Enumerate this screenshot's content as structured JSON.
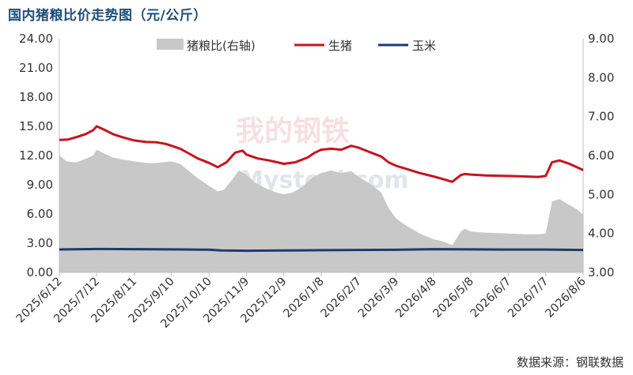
{
  "title": "国内猪粮比价走势图（元/公斤）",
  "source": "数据来源：钢联数据",
  "watermark": "我的钢铁 Mysteel.com",
  "colors": {
    "ratio_fill": "#c8c8c8",
    "pig_line": "#c8141e",
    "corn_line": "#1f3a6e"
  },
  "chart_data": {
    "type": "line",
    "title": "国内猪粮比价走势图（元/公斤）",
    "left_axis": {
      "min": 0,
      "max": 24,
      "step": 3,
      "ticks": [
        "0.00",
        "3.00",
        "6.00",
        "9.00",
        "12.00",
        "15.00",
        "18.00",
        "21.00",
        "24.00"
      ]
    },
    "right_axis": {
      "min": 3,
      "max": 9,
      "step": 1,
      "ticks": [
        "3.00",
        "4.00",
        "5.00",
        "6.00",
        "7.00",
        "8.00",
        "9.00"
      ]
    },
    "x_ticks": [
      "2025/6/12",
      "2025/7/12",
      "2025/8/11",
      "2025/9/10",
      "2025/10/10",
      "2025/11/9",
      "2025/12/9",
      "2026/1/8",
      "2026/2/7",
      "2026/3/9",
      "2026/4/8",
      "2026/5/8",
      "2026/6/7",
      "2026/7/7",
      "2026/8/6"
    ],
    "legend": {
      "placement": "top",
      "items": [
        "猪粮比(右轴)",
        "生猪",
        "玉米"
      ]
    },
    "x_range": [
      "2025/6/12",
      "2026/8/6"
    ],
    "series": [
      {
        "name": "猪粮比(右轴)",
        "type": "area",
        "axis": "right",
        "points": [
          [
            "2025/6/12",
            6.0
          ],
          [
            "2025/6/18",
            5.85
          ],
          [
            "2025/6/25",
            5.82
          ],
          [
            "2025/7/2",
            5.9
          ],
          [
            "2025/7/9",
            6.0
          ],
          [
            "2025/7/12",
            6.15
          ],
          [
            "2025/7/18",
            6.05
          ],
          [
            "2025/7/25",
            5.95
          ],
          [
            "2025/8/1",
            5.9
          ],
          [
            "2025/8/11",
            5.85
          ],
          [
            "2025/8/18",
            5.82
          ],
          [
            "2025/8/25",
            5.8
          ],
          [
            "2025/9/1",
            5.82
          ],
          [
            "2025/9/10",
            5.85
          ],
          [
            "2025/9/17",
            5.78
          ],
          [
            "2025/9/24",
            5.6
          ],
          [
            "2025/10/1",
            5.42
          ],
          [
            "2025/10/10",
            5.22
          ],
          [
            "2025/10/17",
            5.08
          ],
          [
            "2025/10/22",
            5.12
          ],
          [
            "2025/10/29",
            5.4
          ],
          [
            "2025/11/3",
            5.62
          ],
          [
            "2025/11/9",
            5.5
          ],
          [
            "2025/11/16",
            5.3
          ],
          [
            "2025/11/25",
            5.15
          ],
          [
            "2025/12/3",
            5.05
          ],
          [
            "2025/12/9",
            5.0
          ],
          [
            "2025/12/16",
            5.05
          ],
          [
            "2025/12/24",
            5.2
          ],
          [
            "2025/12/31",
            5.42
          ],
          [
            "2026/1/8",
            5.55
          ],
          [
            "2026/1/16",
            5.62
          ],
          [
            "2026/1/24",
            5.55
          ],
          [
            "2026/2/1",
            5.6
          ],
          [
            "2026/2/7",
            5.45
          ],
          [
            "2026/2/15",
            5.3
          ],
          [
            "2026/2/25",
            5.05
          ],
          [
            "2026/3/3",
            4.65
          ],
          [
            "2026/3/9",
            4.38
          ],
          [
            "2026/3/18",
            4.18
          ],
          [
            "2026/3/28",
            4.0
          ],
          [
            "2026/4/8",
            3.85
          ],
          [
            "2026/4/15",
            3.8
          ],
          [
            "2026/4/23",
            3.7
          ],
          [
            "2026/4/30",
            4.05
          ],
          [
            "2026/5/3",
            4.12
          ],
          [
            "2026/5/8",
            4.05
          ],
          [
            "2026/5/20",
            4.02
          ],
          [
            "2026/6/7",
            4.0
          ],
          [
            "2026/6/20",
            3.98
          ],
          [
            "2026/7/1",
            3.98
          ],
          [
            "2026/7/7",
            4.0
          ],
          [
            "2026/7/12",
            4.82
          ],
          [
            "2026/7/18",
            4.88
          ],
          [
            "2026/7/25",
            4.75
          ],
          [
            "2026/8/1",
            4.62
          ],
          [
            "2026/8/6",
            4.48
          ]
        ]
      },
      {
        "name": "生猪",
        "type": "line",
        "axis": "left",
        "points": [
          [
            "2025/6/12",
            13.6
          ],
          [
            "2025/6/19",
            13.65
          ],
          [
            "2025/6/26",
            13.9
          ],
          [
            "2025/7/3",
            14.2
          ],
          [
            "2025/7/9",
            14.6
          ],
          [
            "2025/7/12",
            15.0
          ],
          [
            "2025/7/18",
            14.65
          ],
          [
            "2025/7/25",
            14.2
          ],
          [
            "2025/8/1",
            13.9
          ],
          [
            "2025/8/11",
            13.55
          ],
          [
            "2025/8/20",
            13.4
          ],
          [
            "2025/8/29",
            13.35
          ],
          [
            "2025/9/5",
            13.2
          ],
          [
            "2025/9/10",
            13.0
          ],
          [
            "2025/9/17",
            12.7
          ],
          [
            "2025/9/24",
            12.2
          ],
          [
            "2025/10/1",
            11.7
          ],
          [
            "2025/10/10",
            11.25
          ],
          [
            "2025/10/17",
            10.8
          ],
          [
            "2025/10/24",
            11.3
          ],
          [
            "2025/10/31",
            12.3
          ],
          [
            "2025/11/6",
            12.5
          ],
          [
            "2025/11/9",
            12.1
          ],
          [
            "2025/11/18",
            11.7
          ],
          [
            "2025/11/27",
            11.5
          ],
          [
            "2025/12/4",
            11.3
          ],
          [
            "2025/12/9",
            11.15
          ],
          [
            "2025/12/18",
            11.3
          ],
          [
            "2025/12/28",
            11.8
          ],
          [
            "2026/1/3",
            12.3
          ],
          [
            "2026/1/8",
            12.6
          ],
          [
            "2026/1/16",
            12.7
          ],
          [
            "2026/1/24",
            12.6
          ],
          [
            "2026/2/1",
            13.0
          ],
          [
            "2026/2/7",
            12.8
          ],
          [
            "2026/2/15",
            12.4
          ],
          [
            "2026/2/25",
            11.9
          ],
          [
            "2026/3/3",
            11.3
          ],
          [
            "2026/3/9",
            10.95
          ],
          [
            "2026/3/18",
            10.6
          ],
          [
            "2026/3/28",
            10.2
          ],
          [
            "2026/4/8",
            9.85
          ],
          [
            "2026/4/15",
            9.6
          ],
          [
            "2026/4/23",
            9.3
          ],
          [
            "2026/4/30",
            10.0
          ],
          [
            "2026/5/3",
            10.1
          ],
          [
            "2026/5/8",
            10.05
          ],
          [
            "2026/5/20",
            9.95
          ],
          [
            "2026/6/7",
            9.9
          ],
          [
            "2026/6/20",
            9.85
          ],
          [
            "2026/7/1",
            9.8
          ],
          [
            "2026/7/7",
            9.9
          ],
          [
            "2026/7/12",
            11.3
          ],
          [
            "2026/7/18",
            11.5
          ],
          [
            "2026/7/25",
            11.2
          ],
          [
            "2026/8/1",
            10.8
          ],
          [
            "2026/8/6",
            10.5
          ]
        ]
      },
      {
        "name": "玉米",
        "type": "line",
        "axis": "left",
        "points": [
          [
            "2025/6/12",
            2.35
          ],
          [
            "2025/7/12",
            2.4
          ],
          [
            "2025/8/11",
            2.38
          ],
          [
            "2025/9/10",
            2.36
          ],
          [
            "2025/10/10",
            2.33
          ],
          [
            "2025/10/20",
            2.25
          ],
          [
            "2025/11/9",
            2.22
          ],
          [
            "2025/12/9",
            2.25
          ],
          [
            "2026/1/8",
            2.28
          ],
          [
            "2026/2/7",
            2.3
          ],
          [
            "2026/3/9",
            2.32
          ],
          [
            "2026/4/8",
            2.38
          ],
          [
            "2026/5/8",
            2.36
          ],
          [
            "2026/6/7",
            2.34
          ],
          [
            "2026/7/7",
            2.34
          ],
          [
            "2026/8/6",
            2.3
          ]
        ]
      }
    ]
  }
}
